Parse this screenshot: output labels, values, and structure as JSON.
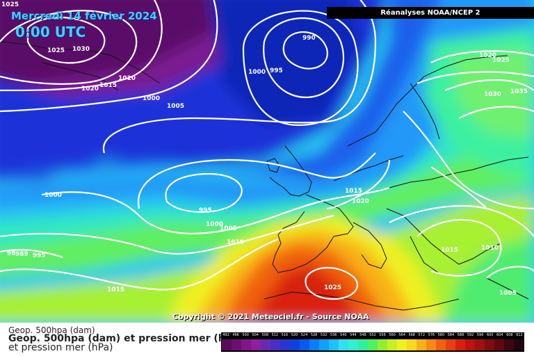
{
  "map": {
    "corner_value": "1025",
    "title_date": "Mercredi 14 février 2024",
    "title_time": "0:00 UTC",
    "source_banner": "Réanalyses NOAA/NCEP 2",
    "copyright": "Copyright © 2021 Meteociel.fr - Source NOAA",
    "isobar_labels": [
      {
        "text": "1025"
      },
      {
        "text": "1030"
      },
      {
        "text": "1020"
      },
      {
        "text": "1015"
      },
      {
        "text": "1010"
      },
      {
        "text": "1000"
      },
      {
        "text": "1005"
      },
      {
        "text": "990"
      },
      {
        "text": "1000"
      },
      {
        "text": "995"
      },
      {
        "text": "1020"
      },
      {
        "text": "1025"
      },
      {
        "text": "1030"
      },
      {
        "text": "1035"
      },
      {
        "text": "1015"
      },
      {
        "text": "1020"
      },
      {
        "text": "1000"
      },
      {
        "text": "995"
      },
      {
        "text": "1000"
      },
      {
        "text": "1005"
      },
      {
        "text": "1010"
      },
      {
        "text": "1015"
      },
      {
        "text": "1025"
      },
      {
        "text": "1015"
      },
      {
        "text": "1010"
      },
      {
        "text": "1005"
      },
      {
        "text": "98"
      },
      {
        "text": "989"
      },
      {
        "text": "995"
      }
    ]
  },
  "legend": {
    "line1": "Geop. 500hpa (dam)",
    "line2": "Geop. 500hpa (dam) et pression mer (hPa)",
    "line3": "et pression mer (hPa)",
    "scale": {
      "labels": [
        "492",
        "496",
        "500",
        "504",
        "508",
        "512",
        "516",
        "520",
        "524",
        "528",
        "532",
        "536",
        "540",
        "544",
        "548",
        "552",
        "556",
        "560",
        "564",
        "568",
        "572",
        "576",
        "580",
        "584",
        "588",
        "592",
        "596",
        "600",
        "604",
        "608",
        "612"
      ],
      "colors": [
        "#5a0a5a",
        "#6e0f70",
        "#82158a",
        "#8e1fa0",
        "#6a2ab0",
        "#4a2fc0",
        "#2a35d0",
        "#1040e0",
        "#0a5af0",
        "#0a7ef8",
        "#10a0fa",
        "#20c0fa",
        "#30e0f0",
        "#30f0d0",
        "#30f0a0",
        "#50f060",
        "#90f030",
        "#c8f020",
        "#f0f020",
        "#f8d820",
        "#f8b018",
        "#f88818",
        "#f06010",
        "#e84010",
        "#d82010",
        "#c01010",
        "#a01010",
        "#800c10",
        "#600810",
        "#400610",
        "#200410"
      ]
    }
  }
}
